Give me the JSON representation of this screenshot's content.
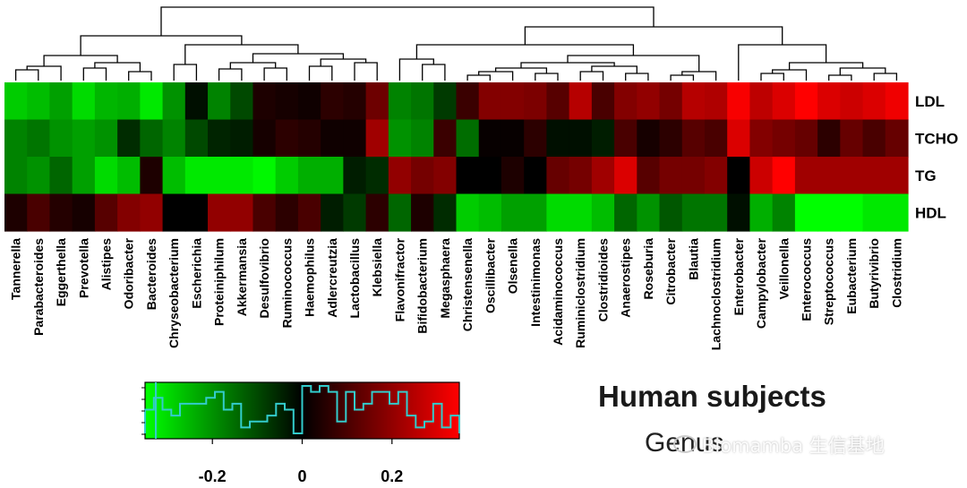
{
  "chart_data": {
    "type": "heatmap",
    "title": "Human subjects",
    "subtitle": "Genus",
    "rows": [
      "LDL",
      "TCHO",
      "TG",
      "HDL"
    ],
    "columns": [
      "Tannerella",
      "Parabacteroides",
      "Eggerthella",
      "Prevotella",
      "Alistipes",
      "Odoribacter",
      "Bacteroides",
      "Chryseobacterium",
      "Escherichia",
      "Proteiniphilum",
      "Akkermansia",
      "Desulfovibrio",
      "Ruminococcus",
      "Haemophilus",
      "Adlercreutzia",
      "Lactobacillus",
      "Klebsiella",
      "Flavonifractor",
      "Bifidobacterium",
      "Megasphaera",
      "Christensenella",
      "Oscillibacter",
      "Olsenella",
      "Intestinimonas",
      "Acidaminococcus",
      "Ruminiclostridium",
      "Clostridioides",
      "Anaerostipes",
      "Roseburia",
      "Citrobacter",
      "Blautia",
      "Lachnoclostridium",
      "Enterobacter",
      "Campylobacter",
      "Veillonella",
      "Enterococcus",
      "Streptococcus",
      "Eubacterium",
      "Butyrivibrio",
      "Clostridium"
    ],
    "values": [
      [
        -0.28,
        -0.26,
        -0.22,
        -0.3,
        -0.25,
        -0.24,
        -0.32,
        -0.2,
        -0.02,
        -0.18,
        -0.1,
        0.04,
        0.03,
        0.02,
        0.06,
        0.05,
        0.15,
        -0.18,
        -0.16,
        -0.08,
        0.08,
        0.18,
        0.18,
        0.17,
        0.12,
        0.25,
        0.1,
        0.18,
        0.2,
        0.16,
        0.25,
        0.24,
        0.34,
        0.26,
        0.3,
        0.35,
        0.3,
        0.28,
        0.3,
        0.33
      ],
      [
        -0.18,
        -0.16,
        -0.2,
        -0.22,
        -0.2,
        -0.06,
        -0.14,
        -0.18,
        -0.1,
        -0.05,
        -0.04,
        0.03,
        0.06,
        0.05,
        0.02,
        0.02,
        0.22,
        -0.2,
        -0.18,
        0.08,
        -0.15,
        0.01,
        0.01,
        0.06,
        -0.02,
        -0.02,
        -0.04,
        0.1,
        0.03,
        0.06,
        0.12,
        0.1,
        0.3,
        0.18,
        0.16,
        0.14,
        0.06,
        0.14,
        0.1,
        0.14
      ],
      [
        -0.18,
        -0.2,
        -0.14,
        -0.22,
        -0.3,
        -0.26,
        0.04,
        -0.26,
        -0.32,
        -0.32,
        -0.32,
        -0.34,
        -0.28,
        -0.24,
        -0.24,
        -0.04,
        -0.06,
        0.2,
        0.16,
        0.18,
        0.0,
        0.0,
        0.04,
        0.0,
        0.14,
        0.16,
        0.22,
        0.3,
        0.12,
        0.16,
        0.16,
        0.18,
        0.0,
        0.28,
        0.35,
        0.22,
        0.22,
        0.22,
        0.22,
        0.22
      ],
      [
        0.04,
        0.1,
        0.05,
        0.03,
        0.12,
        0.18,
        0.2,
        0.0,
        0.0,
        0.2,
        0.2,
        0.1,
        0.06,
        0.1,
        -0.04,
        -0.08,
        0.06,
        -0.14,
        0.04,
        -0.06,
        -0.28,
        -0.26,
        -0.22,
        -0.22,
        -0.3,
        -0.3,
        -0.26,
        -0.14,
        -0.2,
        -0.12,
        -0.16,
        -0.16,
        -0.02,
        -0.24,
        -0.18,
        -0.38,
        -0.38,
        -0.38,
        -0.32,
        -0.32
      ]
    ],
    "colorbar": {
      "range": [
        -0.35,
        0.35
      ],
      "ticks": [
        -0.2,
        0,
        0.2
      ],
      "tick_labels": [
        "-0.2",
        "0",
        "0.2"
      ],
      "low_color": "#00ff00",
      "mid_color": "#000000",
      "high_color": "#ff0000",
      "histogram_color": "#33cccc"
    }
  },
  "watermark": "Biomamba 生信基地"
}
